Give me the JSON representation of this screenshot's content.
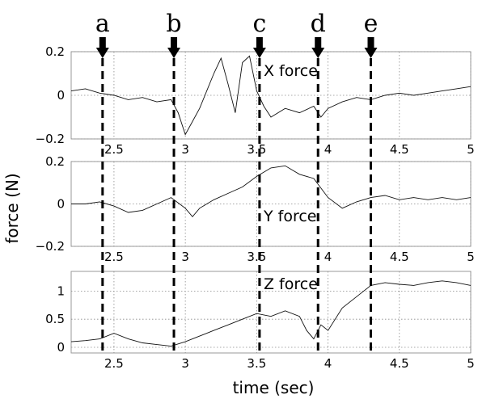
{
  "chart_data": {
    "type": "line",
    "ylabel": "force (N)",
    "xlabel": "time (sec)",
    "xlim": [
      2.2,
      5.0
    ],
    "events": [
      {
        "label": "a",
        "t": 2.42
      },
      {
        "label": "b",
        "t": 2.92
      },
      {
        "label": "c",
        "t": 3.52
      },
      {
        "label": "d",
        "t": 3.93
      },
      {
        "label": "e",
        "t": 4.3
      }
    ],
    "panels": [
      {
        "title": "X force",
        "ylim": [
          -0.2,
          0.2
        ],
        "yticks": [
          {
            "value": 0.2,
            "label": "0.2"
          },
          {
            "value": 0,
            "label": "0"
          },
          {
            "value": -0.2,
            "label": "−0.2"
          }
        ],
        "xticks": [
          {
            "value": 2.5,
            "label": "2.5"
          },
          {
            "value": 3,
            "label": "3"
          },
          {
            "value": 3.5,
            "label": "3.5"
          },
          {
            "value": 4,
            "label": "4"
          },
          {
            "value": 4.5,
            "label": "4.5"
          },
          {
            "value": 5,
            "label": "5"
          }
        ],
        "x": [
          2.2,
          2.3,
          2.4,
          2.5,
          2.6,
          2.7,
          2.8,
          2.9,
          2.95,
          3.0,
          3.05,
          3.1,
          3.15,
          3.2,
          3.25,
          3.3,
          3.35,
          3.4,
          3.45,
          3.5,
          3.55,
          3.6,
          3.7,
          3.8,
          3.9,
          3.95,
          4.0,
          4.1,
          4.2,
          4.3,
          4.4,
          4.5,
          4.6,
          4.7,
          4.8,
          4.9,
          5.0
        ],
        "y": [
          0.02,
          0.03,
          0.01,
          0.0,
          -0.02,
          -0.01,
          -0.03,
          -0.02,
          -0.08,
          -0.18,
          -0.12,
          -0.06,
          0.02,
          0.1,
          0.17,
          0.05,
          -0.08,
          0.15,
          0.18,
          0.02,
          -0.05,
          -0.1,
          -0.06,
          -0.08,
          -0.05,
          -0.1,
          -0.06,
          -0.03,
          -0.01,
          -0.02,
          0.0,
          0.01,
          0.0,
          0.01,
          0.02,
          0.03,
          0.04
        ]
      },
      {
        "title": "Y force",
        "ylim": [
          -0.2,
          0.2
        ],
        "yticks": [
          {
            "value": 0.2,
            "label": "0.2"
          },
          {
            "value": 0,
            "label": "0"
          },
          {
            "value": -0.2,
            "label": "−0.2"
          }
        ],
        "xticks": [
          {
            "value": 2.5,
            "label": "2.5"
          },
          {
            "value": 3,
            "label": "3"
          },
          {
            "value": 3.5,
            "label": "3.5"
          },
          {
            "value": 4,
            "label": "4"
          },
          {
            "value": 4.5,
            "label": "4.5"
          },
          {
            "value": 5,
            "label": "5"
          }
        ],
        "x": [
          2.2,
          2.3,
          2.4,
          2.5,
          2.6,
          2.7,
          2.8,
          2.9,
          3.0,
          3.05,
          3.1,
          3.2,
          3.3,
          3.4,
          3.5,
          3.6,
          3.7,
          3.8,
          3.9,
          4.0,
          4.1,
          4.2,
          4.3,
          4.4,
          4.5,
          4.6,
          4.7,
          4.8,
          4.9,
          5.0
        ],
        "y": [
          0.0,
          0.0,
          0.01,
          -0.01,
          -0.04,
          -0.03,
          0.0,
          0.03,
          -0.02,
          -0.06,
          -0.02,
          0.02,
          0.05,
          0.08,
          0.13,
          0.17,
          0.18,
          0.14,
          0.12,
          0.03,
          -0.02,
          0.01,
          0.03,
          0.04,
          0.02,
          0.03,
          0.02,
          0.03,
          0.02,
          0.03
        ]
      },
      {
        "title": "Z force",
        "ylim": [
          -0.1,
          1.35
        ],
        "yticks": [
          {
            "value": 1,
            "label": "1"
          },
          {
            "value": 0.5,
            "label": "0.5"
          },
          {
            "value": 0,
            "label": "0"
          }
        ],
        "xticks": [
          {
            "value": 2.5,
            "label": "2.5"
          },
          {
            "value": 3,
            "label": "3"
          },
          {
            "value": 3.5,
            "label": "3.5"
          },
          {
            "value": 4,
            "label": "4"
          },
          {
            "value": 4.5,
            "label": "4.5"
          },
          {
            "value": 5,
            "label": "5"
          }
        ],
        "x": [
          2.2,
          2.3,
          2.4,
          2.5,
          2.6,
          2.7,
          2.8,
          2.9,
          3.0,
          3.1,
          3.2,
          3.3,
          3.4,
          3.5,
          3.6,
          3.7,
          3.8,
          3.85,
          3.9,
          3.95,
          4.0,
          4.1,
          4.2,
          4.3,
          4.4,
          4.5,
          4.6,
          4.7,
          4.8,
          4.9,
          5.0
        ],
        "y": [
          0.1,
          0.12,
          0.15,
          0.25,
          0.15,
          0.08,
          0.05,
          0.02,
          0.1,
          0.2,
          0.3,
          0.4,
          0.5,
          0.6,
          0.55,
          0.65,
          0.55,
          0.3,
          0.15,
          0.4,
          0.3,
          0.7,
          0.9,
          1.1,
          1.15,
          1.12,
          1.1,
          1.15,
          1.18,
          1.15,
          1.1
        ]
      }
    ]
  }
}
